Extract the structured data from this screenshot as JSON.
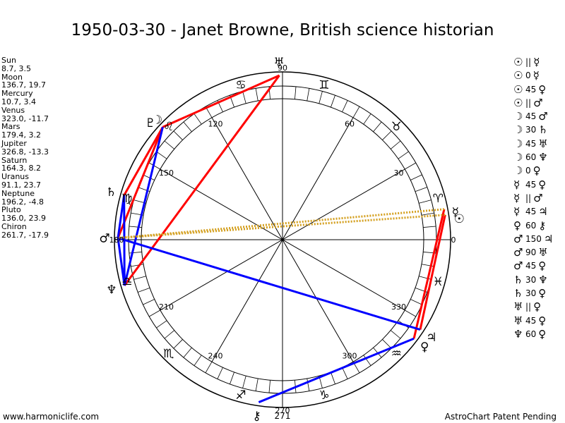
{
  "title": "1950-03-30 - Janet Browne, British science historian",
  "planets": [
    {
      "name": "Sun",
      "coords": "8.7, 3.5"
    },
    {
      "name": "Moon",
      "coords": "136.7, 19.7"
    },
    {
      "name": "Mercury",
      "coords": "10.7, 3.4"
    },
    {
      "name": "Venus",
      "coords": "323.0, -11.7"
    },
    {
      "name": "Mars",
      "coords": "179.4, 3.2"
    },
    {
      "name": "Jupiter",
      "coords": "326.8, -13.3"
    },
    {
      "name": "Saturn",
      "coords": "164.3, 8.2"
    },
    {
      "name": "Uranus",
      "coords": "91.1, 23.7"
    },
    {
      "name": "Neptune",
      "coords": "196.2, -4.8"
    },
    {
      "name": "Pluto",
      "coords": "136.0, 23.9"
    },
    {
      "name": "Chiron",
      "coords": "261.7, -17.9"
    }
  ],
  "aspects": [
    {
      "g1": "☉",
      "angle": "||",
      "g2": "☿"
    },
    {
      "g1": "☉",
      "angle": "0",
      "g2": "☿"
    },
    {
      "g1": "☉",
      "angle": "45",
      "g2": "♀"
    },
    {
      "g1": "☉",
      "angle": "||",
      "g2": "♂"
    },
    {
      "g1": "☽",
      "angle": "45",
      "g2": "♂"
    },
    {
      "g1": "☽",
      "angle": "30",
      "g2": "♄"
    },
    {
      "g1": "☽",
      "angle": "45",
      "g2": "♅"
    },
    {
      "g1": "☽",
      "angle": "60",
      "g2": "♆"
    },
    {
      "g1": "☽",
      "angle": "0",
      "g2": "♀"
    },
    {
      "g1": "☿",
      "angle": "45",
      "g2": "♀"
    },
    {
      "g1": "☿",
      "angle": "||",
      "g2": "♂"
    },
    {
      "g1": "☿",
      "angle": "45",
      "g2": "♃"
    },
    {
      "g1": "♀",
      "angle": "60",
      "g2": "⚷"
    },
    {
      "g1": "♂",
      "angle": "150",
      "g2": "♃"
    },
    {
      "g1": "♂",
      "angle": "90",
      "g2": "♅"
    },
    {
      "g1": "♂",
      "angle": "45",
      "g2": "♀"
    },
    {
      "g1": "♄",
      "angle": "30",
      "g2": "♆"
    },
    {
      "g1": "♄",
      "angle": "30",
      "g2": "♀"
    },
    {
      "g1": "♅",
      "angle": "||",
      "g2": "♀"
    },
    {
      "g1": "♅",
      "angle": "45",
      "g2": "♀"
    },
    {
      "g1": "♆",
      "angle": "60",
      "g2": "♀"
    }
  ],
  "wheel": {
    "degree_labels": [
      {
        "deg": 0,
        "text": "0"
      },
      {
        "deg": 30,
        "text": "30"
      },
      {
        "deg": 60,
        "text": "60"
      },
      {
        "deg": 90,
        "text": "90"
      },
      {
        "deg": 120,
        "text": "120"
      },
      {
        "deg": 150,
        "text": "150"
      },
      {
        "deg": 180,
        "text": "180"
      },
      {
        "deg": 210,
        "text": "210"
      },
      {
        "deg": 240,
        "text": "240"
      },
      {
        "deg": 270,
        "text": "270"
      },
      {
        "deg": 300,
        "text": "300"
      },
      {
        "deg": 330,
        "text": "330"
      }
    ],
    "signs": [
      {
        "name": "aries-icon",
        "glyph": "♈",
        "deg": 15
      },
      {
        "name": "taurus-icon",
        "glyph": "♉",
        "deg": 45
      },
      {
        "name": "gemini-icon",
        "glyph": "♊",
        "deg": 75
      },
      {
        "name": "cancer-icon",
        "glyph": "♋",
        "deg": 105
      },
      {
        "name": "leo-icon",
        "glyph": "♌",
        "deg": 135
      },
      {
        "name": "virgo-icon",
        "glyph": "♍",
        "deg": 165
      },
      {
        "name": "libra-icon",
        "glyph": "♎",
        "deg": 195
      },
      {
        "name": "scorpio-icon",
        "glyph": "♏",
        "deg": 225
      },
      {
        "name": "sagittarius-icon",
        "glyph": "♐",
        "deg": 255
      },
      {
        "name": "capricorn-icon",
        "glyph": "♑",
        "deg": 285
      },
      {
        "name": "aquarius-icon",
        "glyph": "♒",
        "deg": 315
      },
      {
        "name": "pisces-icon",
        "glyph": "♓",
        "deg": 345
      }
    ],
    "bodies": [
      {
        "name": "sun-glyph",
        "glyph": "☉",
        "deg": 8.7
      },
      {
        "name": "mercury-glyph",
        "glyph": "☿",
        "deg": 10.7
      },
      {
        "name": "moon-glyph",
        "glyph": "☽",
        "deg": 136.7
      },
      {
        "name": "pluto-glyph",
        "glyph": "♇",
        "deg": 136.0
      },
      {
        "name": "venus-glyph",
        "glyph": "♀",
        "deg": 323.0
      },
      {
        "name": "jupiter-glyph",
        "glyph": "♃",
        "deg": 326.8
      },
      {
        "name": "mars-glyph",
        "glyph": "♂",
        "deg": 179.4
      },
      {
        "name": "saturn-glyph",
        "glyph": "♄",
        "deg": 164.3
      },
      {
        "name": "uranus-glyph",
        "glyph": "♅",
        "deg": 91.1
      },
      {
        "name": "neptune-glyph",
        "glyph": "♆",
        "deg": 196.2
      },
      {
        "name": "chiron-glyph",
        "glyph": "⚷",
        "deg": 261.7
      }
    ],
    "aspect_lines": [
      {
        "from": 91.1,
        "to": 136.7,
        "color": "#ff0000",
        "style": "solid"
      },
      {
        "from": 91.1,
        "to": 196.2,
        "color": "#ff0000",
        "style": "solid"
      },
      {
        "from": 136.7,
        "to": 179.4,
        "color": "#ff0000",
        "style": "solid"
      },
      {
        "from": 136.7,
        "to": 164.3,
        "color": "#ff0000",
        "style": "solid"
      },
      {
        "from": 8.7,
        "to": 326.8,
        "color": "#ff0000",
        "style": "solid"
      },
      {
        "from": 10.7,
        "to": 323.0,
        "color": "#ff0000",
        "style": "solid"
      },
      {
        "from": 136.7,
        "to": 196.2,
        "color": "#0000ff",
        "style": "solid"
      },
      {
        "from": 164.3,
        "to": 196.2,
        "color": "#0000ff",
        "style": "solid"
      },
      {
        "from": 179.4,
        "to": 196.2,
        "color": "#0000ff",
        "style": "solid"
      },
      {
        "from": 164.3,
        "to": 179.4,
        "color": "#0000ff",
        "style": "solid"
      },
      {
        "from": 179.4,
        "to": 326.8,
        "color": "#0000ff",
        "style": "solid"
      },
      {
        "from": 261.7,
        "to": 323.0,
        "color": "#0000ff",
        "style": "solid"
      },
      {
        "from": 8.7,
        "to": 179.4,
        "color": "#d4a020",
        "style": "dotted"
      },
      {
        "from": 10.7,
        "to": 179.4,
        "color": "#d4a020",
        "style": "dotted"
      }
    ],
    "bottom_label": "271"
  },
  "footer": {
    "left": "www.harmoniclife.com",
    "right": "AstroChart Patent Pending"
  }
}
